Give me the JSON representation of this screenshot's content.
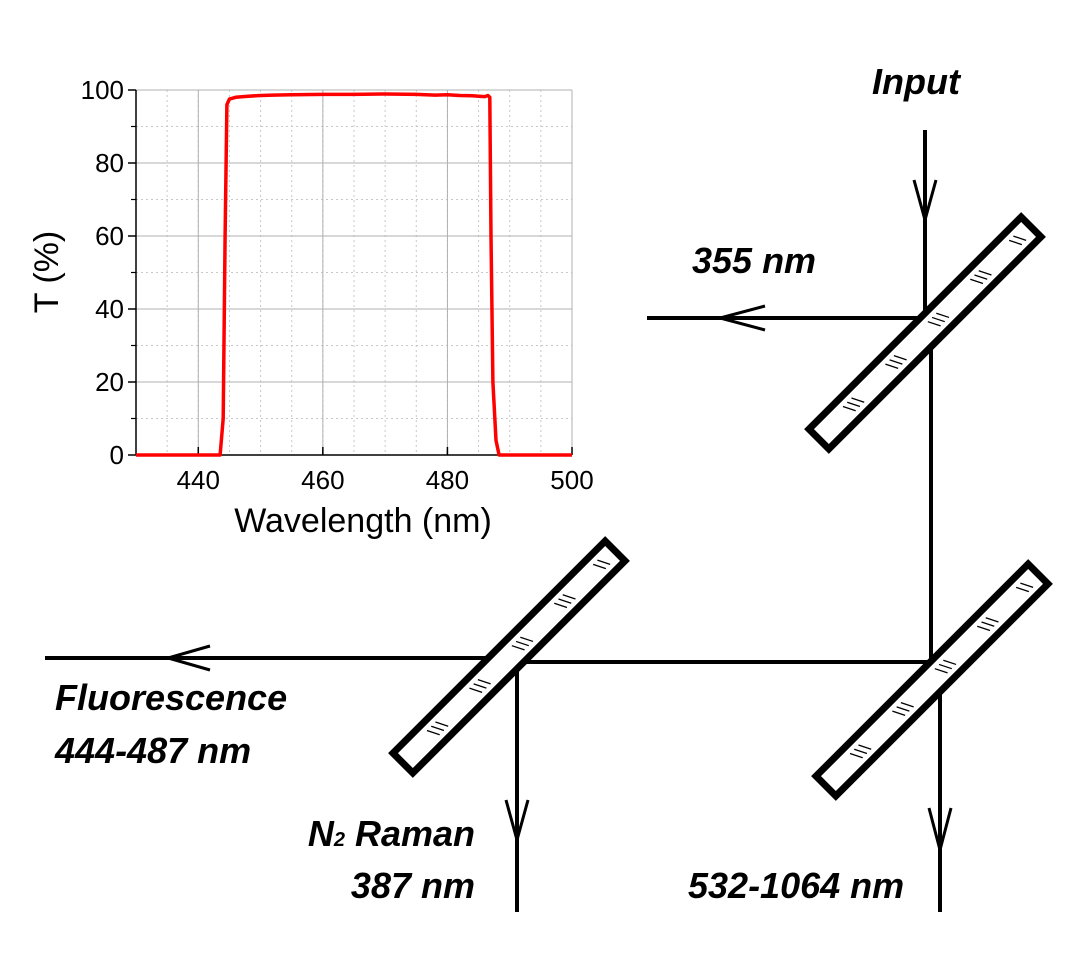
{
  "labels": {
    "input": "Input",
    "uv": "355 nm",
    "fluorescence_line1": "Fluorescence",
    "fluorescence_line2": "444-487 nm",
    "raman_prefix": "N",
    "raman_subscript": "2",
    "raman_suffix": " Raman",
    "raman_line2": "387 nm",
    "ir": "532-1064 nm"
  },
  "chart_data": {
    "type": "line",
    "xlabel": "Wavelength (nm)",
    "ylabel": "T (%)",
    "xlim": [
      430,
      500
    ],
    "ylim": [
      0,
      100
    ],
    "xticks": [
      440,
      460,
      480,
      500
    ],
    "yticks": [
      0,
      20,
      40,
      60,
      80,
      100
    ],
    "grid": true,
    "series": [
      {
        "color": "#ff0000",
        "x": [
          430,
          443.5,
          444.0,
          444.3,
          444.6,
          445,
          446,
          448,
          450,
          452,
          455,
          460,
          465,
          470,
          475,
          478,
          480,
          482,
          484,
          485,
          486,
          486.5,
          486.8,
          487.0,
          487.3,
          487.8,
          488.3,
          500
        ],
        "y": [
          0,
          0,
          10,
          60,
          96,
          97.5,
          98,
          98.3,
          98.5,
          98.6,
          98.7,
          98.8,
          98.8,
          98.9,
          98.8,
          98.6,
          98.7,
          98.5,
          98.4,
          98.3,
          98.2,
          98.5,
          98,
          60,
          20,
          4,
          0,
          0
        ]
      }
    ]
  }
}
